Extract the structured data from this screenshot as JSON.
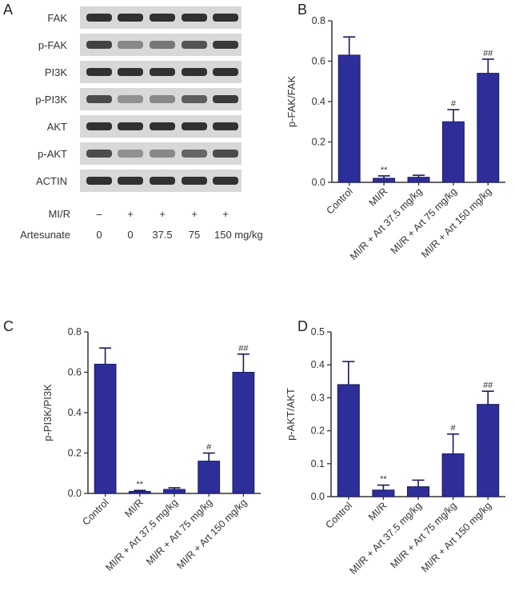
{
  "panel_letters": [
    "A",
    "B",
    "C",
    "D"
  ],
  "blot": {
    "proteins": [
      "FAK",
      "p-FAK",
      "PI3K",
      "p-PI3K",
      "AKT",
      "p-AKT",
      "ACTIN"
    ],
    "row_labels": [
      "MI/R",
      "Artesunate"
    ],
    "mir_values": [
      "–",
      "+",
      "+",
      "+",
      "+"
    ],
    "artesunate_values": [
      "0",
      "0",
      "37.5",
      "75",
      "150 mg/kg"
    ],
    "band_intensity": [
      [
        0.95,
        0.95,
        0.95,
        0.95,
        0.95
      ],
      [
        0.85,
        0.45,
        0.55,
        0.75,
        0.9
      ],
      [
        0.95,
        0.95,
        0.95,
        0.95,
        0.95
      ],
      [
        0.8,
        0.4,
        0.45,
        0.7,
        0.9
      ],
      [
        0.95,
        0.95,
        0.95,
        0.95,
        0.95
      ],
      [
        0.8,
        0.4,
        0.45,
        0.65,
        0.8
      ],
      [
        0.95,
        0.95,
        0.95,
        0.95,
        0.95
      ]
    ]
  },
  "bar_color": "#2e2e9a",
  "chart_data": [
    {
      "type": "bar",
      "panel": "B",
      "categories": [
        "Control",
        "MI/R",
        "MI/R + Art 37.5 mg/kg",
        "MI/R + Art 75 mg/kg",
        "MI/R + Art 150 mg/kg"
      ],
      "values": [
        0.63,
        0.02,
        0.025,
        0.3,
        0.54
      ],
      "errors": [
        0.09,
        0.012,
        0.01,
        0.06,
        0.07
      ],
      "annotations": [
        "",
        "**",
        "",
        "#",
        "##"
      ],
      "ylabel": "p-FAK/FAK",
      "ylim": [
        0,
        0.8
      ],
      "yticks": [
        "0.0",
        "0.2",
        "0.4",
        "0.6",
        "0.8"
      ]
    },
    {
      "type": "bar",
      "panel": "C",
      "categories": [
        "Control",
        "MI/R",
        "MI/R + Art 37.5 mg/kg",
        "MI/R + Art 75 mg/kg",
        "MI/R + Art 150 mg/kg"
      ],
      "values": [
        0.64,
        0.01,
        0.02,
        0.16,
        0.6
      ],
      "errors": [
        0.08,
        0.005,
        0.008,
        0.04,
        0.09
      ],
      "annotations": [
        "",
        "**",
        "",
        "#",
        "##"
      ],
      "ylabel": "p-PI3K/PI3K",
      "ylim": [
        0,
        0.8
      ],
      "yticks": [
        "0.0",
        "0.2",
        "0.4",
        "0.6",
        "0.8"
      ]
    },
    {
      "type": "bar",
      "panel": "D",
      "categories": [
        "Control",
        "MI/R",
        "MI/R + Art 37.5 mg/kg",
        "MI/R + Art 75 mg/kg",
        "MI/R + Art 150 mg/kg"
      ],
      "values": [
        0.34,
        0.02,
        0.03,
        0.13,
        0.28
      ],
      "errors": [
        0.07,
        0.015,
        0.02,
        0.06,
        0.04
      ],
      "annotations": [
        "",
        "**",
        "",
        "#",
        "##"
      ],
      "ylabel": "p-AKT/AKT",
      "ylim": [
        0,
        0.5
      ],
      "yticks": [
        "0.0",
        "0.1",
        "0.2",
        "0.3",
        "0.4",
        "0.5"
      ]
    }
  ]
}
